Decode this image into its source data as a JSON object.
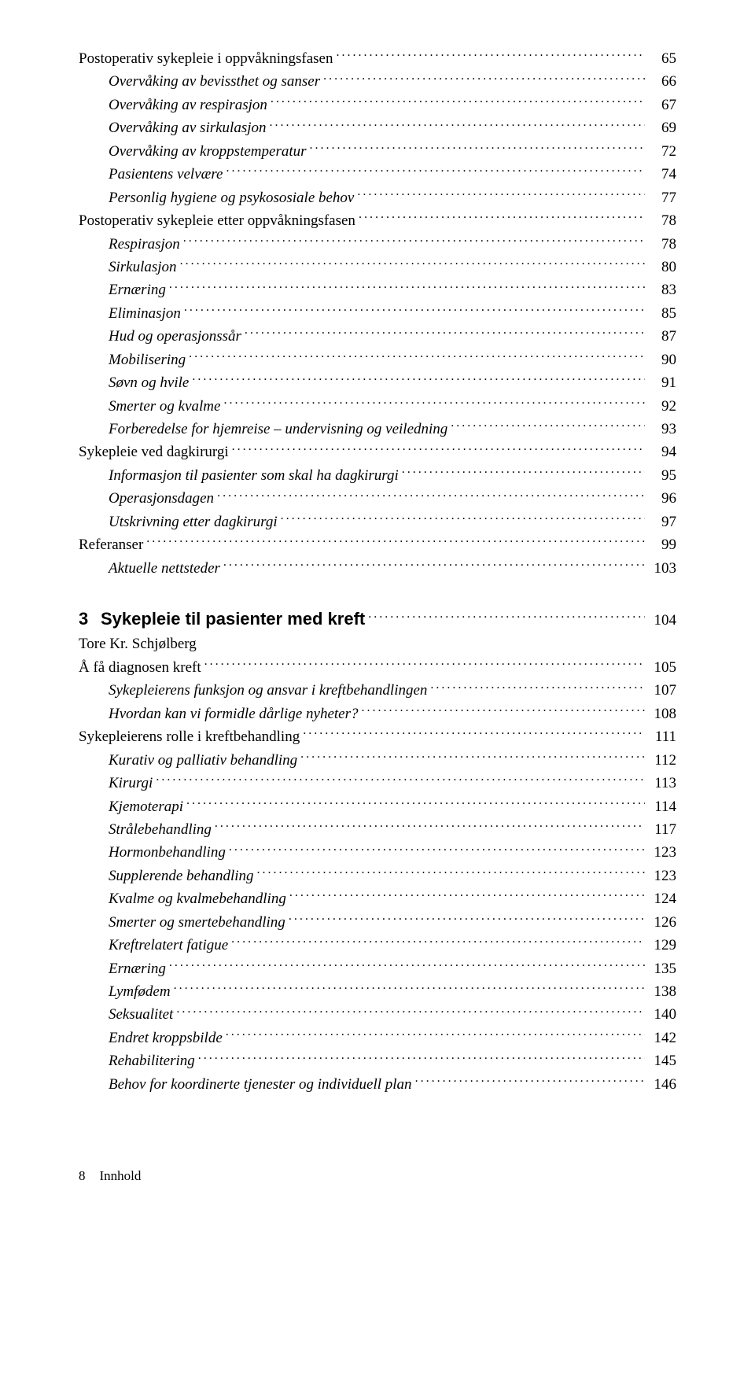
{
  "toc": [
    {
      "label": "Postoperativ sykepleie i oppvåkningsfasen",
      "page": "65",
      "indent": 0,
      "italic": false
    },
    {
      "label": "Overvåking av bevissthet og sanser",
      "page": "66",
      "indent": 1,
      "italic": true
    },
    {
      "label": "Overvåking av respirasjon",
      "page": "67",
      "indent": 1,
      "italic": true
    },
    {
      "label": "Overvåking av sirkulasjon",
      "page": "69",
      "indent": 1,
      "italic": true
    },
    {
      "label": "Overvåking av kroppstemperatur",
      "page": "72",
      "indent": 1,
      "italic": true
    },
    {
      "label": "Pasientens velvære",
      "page": "74",
      "indent": 1,
      "italic": true
    },
    {
      "label": "Personlig hygiene og psykososiale behov",
      "page": "77",
      "indent": 1,
      "italic": true
    },
    {
      "label": "Postoperativ sykepleie etter oppvåkningsfasen",
      "page": "78",
      "indent": 0,
      "italic": false
    },
    {
      "label": "Respirasjon",
      "page": "78",
      "indent": 1,
      "italic": true
    },
    {
      "label": "Sirkulasjon",
      "page": "80",
      "indent": 1,
      "italic": true
    },
    {
      "label": "Ernæring",
      "page": "83",
      "indent": 1,
      "italic": true
    },
    {
      "label": "Eliminasjon",
      "page": "85",
      "indent": 1,
      "italic": true
    },
    {
      "label": "Hud og operasjonssår",
      "page": "87",
      "indent": 1,
      "italic": true
    },
    {
      "label": "Mobilisering",
      "page": "90",
      "indent": 1,
      "italic": true
    },
    {
      "label": "Søvn og hvile",
      "page": "91",
      "indent": 1,
      "italic": true
    },
    {
      "label": "Smerter og kvalme",
      "page": "92",
      "indent": 1,
      "italic": true
    },
    {
      "label": "Forberedelse for hjemreise – undervisning og veiledning",
      "page": "93",
      "indent": 1,
      "italic": true
    },
    {
      "label": "Sykepleie ved dagkirurgi",
      "page": "94",
      "indent": 0,
      "italic": false
    },
    {
      "label": "Informasjon til pasienter som skal ha dagkirurgi",
      "page": "95",
      "indent": 1,
      "italic": true
    },
    {
      "label": "Operasjonsdagen",
      "page": "96",
      "indent": 1,
      "italic": true
    },
    {
      "label": "Utskrivning etter dagkirurgi",
      "page": "97",
      "indent": 1,
      "italic": true
    },
    {
      "label": "Referanser",
      "page": "99",
      "indent": 0,
      "italic": false
    },
    {
      "label": "Aktuelle nettsteder",
      "page": "103",
      "indent": 1,
      "italic": true
    }
  ],
  "chapter": {
    "number": "3",
    "title": "Sykepleie til pasienter med kreft",
    "page": "104",
    "author": "Tore Kr. Schjølberg"
  },
  "toc2": [
    {
      "label": "Å få diagnosen kreft",
      "page": "105",
      "indent": 0,
      "italic": false
    },
    {
      "label": "Sykepleierens funksjon og ansvar i kreftbehandlingen",
      "page": "107",
      "indent": 1,
      "italic": true
    },
    {
      "label": "Hvordan kan vi formidle dårlige nyheter?",
      "page": "108",
      "indent": 1,
      "italic": true
    },
    {
      "label": "Sykepleierens rolle i kreftbehandling",
      "page": "111",
      "indent": 0,
      "italic": false
    },
    {
      "label": "Kurativ og palliativ behandling",
      "page": "112",
      "indent": 1,
      "italic": true
    },
    {
      "label": "Kirurgi",
      "page": "113",
      "indent": 1,
      "italic": true
    },
    {
      "label": "Kjemoterapi",
      "page": "114",
      "indent": 1,
      "italic": true
    },
    {
      "label": "Strålebehandling",
      "page": "117",
      "indent": 1,
      "italic": true
    },
    {
      "label": "Hormonbehandling",
      "page": "123",
      "indent": 1,
      "italic": true
    },
    {
      "label": "Supplerende behandling",
      "page": "123",
      "indent": 1,
      "italic": true
    },
    {
      "label": "Kvalme og kvalmebehandling",
      "page": "124",
      "indent": 1,
      "italic": true
    },
    {
      "label": "Smerter og smertebehandling",
      "page": "126",
      "indent": 1,
      "italic": true
    },
    {
      "label": "Kreftrelatert fatigue",
      "page": "129",
      "indent": 1,
      "italic": true
    },
    {
      "label": "Ernæring",
      "page": "135",
      "indent": 1,
      "italic": true
    },
    {
      "label": "Lymfødem",
      "page": "138",
      "indent": 1,
      "italic": true
    },
    {
      "label": "Seksualitet",
      "page": "140",
      "indent": 1,
      "italic": true
    },
    {
      "label": "Endret kroppsbilde",
      "page": "142",
      "indent": 1,
      "italic": true
    },
    {
      "label": "Rehabilitering",
      "page": "145",
      "indent": 1,
      "italic": true
    },
    {
      "label": "Behov for koordinerte tjenester og individuell plan",
      "page": "146",
      "indent": 1,
      "italic": true
    }
  ],
  "footer": {
    "pagenum": "8",
    "section": "Innhold"
  }
}
